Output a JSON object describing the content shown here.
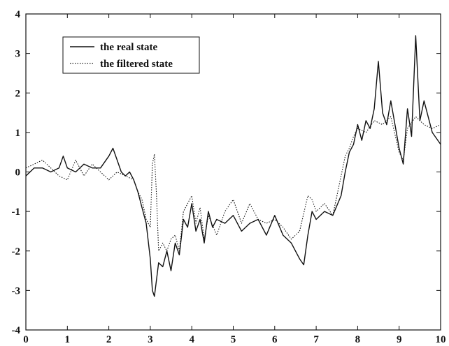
{
  "chart_data": {
    "type": "line",
    "title": "",
    "xlabel": "",
    "ylabel": "",
    "xlim": [
      0,
      10
    ],
    "ylim": [
      -4,
      4
    ],
    "x_ticks": [
      "0",
      "1",
      "2",
      "3",
      "4",
      "5",
      "6",
      "7",
      "8",
      "9",
      "10"
    ],
    "y_ticks": [
      "4",
      "3",
      "2",
      "1",
      "0",
      "-1",
      "-2",
      "-3",
      "-4"
    ],
    "grid": false,
    "legend": {
      "position": "top-left"
    },
    "series": [
      {
        "name": "the real state",
        "style": "solid",
        "x": [
          0,
          0.2,
          0.4,
          0.6,
          0.8,
          0.9,
          1.0,
          1.2,
          1.4,
          1.6,
          1.8,
          2.0,
          2.1,
          2.2,
          2.3,
          2.4,
          2.5,
          2.6,
          2.7,
          2.8,
          2.9,
          3.0,
          3.05,
          3.1,
          3.2,
          3.3,
          3.4,
          3.5,
          3.6,
          3.7,
          3.8,
          3.9,
          4.0,
          4.1,
          4.2,
          4.3,
          4.4,
          4.5,
          4.6,
          4.8,
          5.0,
          5.2,
          5.4,
          5.6,
          5.8,
          6.0,
          6.2,
          6.4,
          6.6,
          6.7,
          6.8,
          6.9,
          7.0,
          7.2,
          7.4,
          7.6,
          7.7,
          7.8,
          7.9,
          8.0,
          8.1,
          8.2,
          8.3,
          8.4,
          8.5,
          8.6,
          8.7,
          8.8,
          9.0,
          9.1,
          9.2,
          9.3,
          9.4,
          9.5,
          9.6,
          9.8,
          10.0
        ],
        "y": [
          -0.1,
          0.1,
          0.1,
          0.0,
          0.1,
          0.4,
          0.1,
          0.0,
          0.2,
          0.1,
          0.1,
          0.4,
          0.6,
          0.3,
          0.0,
          -0.1,
          0.0,
          -0.2,
          -0.5,
          -0.9,
          -1.3,
          -2.2,
          -3.0,
          -3.15,
          -2.3,
          -2.4,
          -2.0,
          -2.5,
          -1.8,
          -2.1,
          -1.2,
          -1.4,
          -0.8,
          -1.5,
          -1.2,
          -1.8,
          -1.0,
          -1.4,
          -1.2,
          -1.3,
          -1.1,
          -1.5,
          -1.3,
          -1.2,
          -1.6,
          -1.1,
          -1.6,
          -1.8,
          -2.2,
          -2.35,
          -1.6,
          -1.0,
          -1.2,
          -1.0,
          -1.1,
          -0.6,
          0.0,
          0.5,
          0.7,
          1.2,
          0.8,
          1.3,
          1.1,
          1.6,
          2.8,
          1.5,
          1.2,
          1.8,
          0.6,
          0.2,
          1.6,
          0.9,
          3.45,
          1.3,
          1.8,
          1.0,
          0.7
        ]
      },
      {
        "name": "the filtered state",
        "style": "dotted",
        "x": [
          0,
          0.2,
          0.4,
          0.6,
          0.8,
          1.0,
          1.2,
          1.4,
          1.6,
          1.8,
          2.0,
          2.2,
          2.4,
          2.6,
          2.7,
          2.8,
          2.9,
          3.0,
          3.05,
          3.1,
          3.15,
          3.2,
          3.3,
          3.4,
          3.5,
          3.6,
          3.7,
          3.8,
          3.9,
          4.0,
          4.1,
          4.2,
          4.3,
          4.4,
          4.6,
          4.8,
          5.0,
          5.2,
          5.4,
          5.6,
          5.8,
          6.0,
          6.2,
          6.4,
          6.6,
          6.8,
          6.9,
          7.0,
          7.2,
          7.4,
          7.5,
          7.6,
          7.7,
          7.8,
          7.9,
          8.0,
          8.2,
          8.4,
          8.6,
          8.8,
          9.0,
          9.1,
          9.2,
          9.4,
          9.6,
          9.8,
          10.0
        ],
        "y": [
          0.1,
          0.2,
          0.3,
          0.1,
          -0.1,
          -0.2,
          0.3,
          -0.1,
          0.2,
          0.0,
          -0.2,
          0.0,
          -0.1,
          -0.2,
          -0.5,
          -0.7,
          -1.2,
          -1.4,
          0.2,
          0.45,
          -0.6,
          -2.0,
          -1.8,
          -2.0,
          -1.7,
          -1.6,
          -2.0,
          -1.0,
          -0.8,
          -0.6,
          -1.3,
          -0.9,
          -1.7,
          -1.1,
          -1.6,
          -1.0,
          -0.7,
          -1.3,
          -0.8,
          -1.2,
          -1.3,
          -1.2,
          -1.4,
          -1.7,
          -1.5,
          -0.6,
          -0.7,
          -1.0,
          -0.8,
          -1.1,
          -0.6,
          -0.1,
          0.4,
          0.6,
          0.9,
          1.1,
          1.0,
          1.3,
          1.2,
          1.4,
          0.5,
          0.3,
          1.1,
          1.4,
          1.2,
          1.1,
          1.2
        ]
      }
    ]
  }
}
